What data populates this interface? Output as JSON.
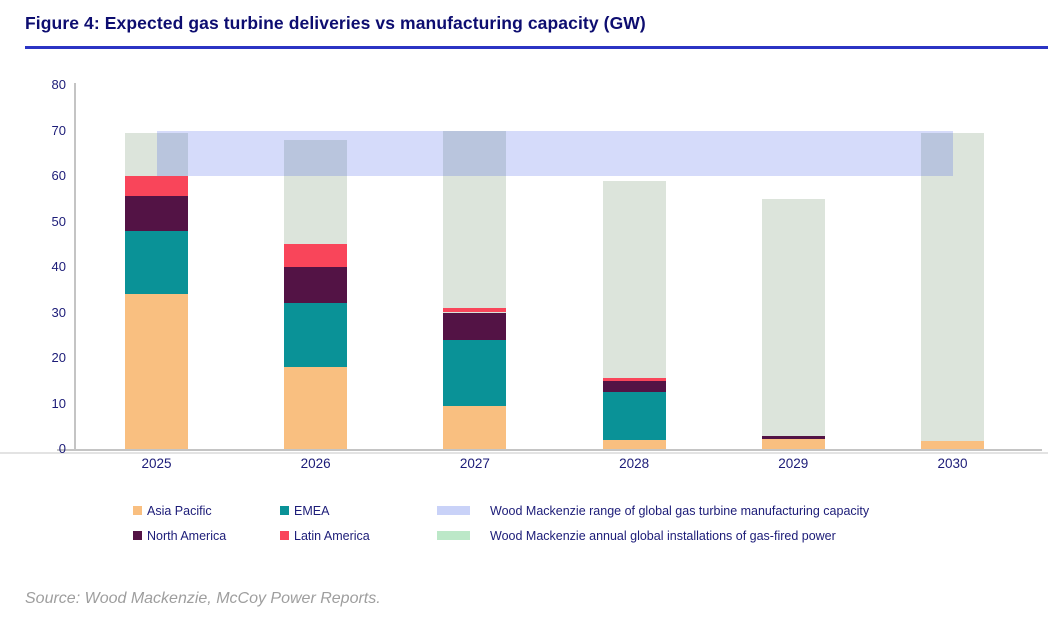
{
  "title": "Figure 4: Expected gas turbine deliveries vs manufacturing capacity (GW)",
  "source": {
    "text": "Source: Wood Mackenzie, McCoy Power Reports."
  },
  "legend": {
    "items": [
      {
        "label": "Asia Pacific",
        "color": "#f9bf80"
      },
      {
        "label": "EMEA",
        "color": "#0a9297"
      },
      {
        "label": "North America",
        "color": "#531345"
      },
      {
        "label": "Latin America",
        "color": "#f9455a"
      }
    ],
    "band_label": "Wood Mackenzie range of global gas turbine manufacturing capacity",
    "band_swatch_color": "#c9d2f8",
    "installations_label": "Wood Mackenzie annual global installations of gas-fired power",
    "installations_swatch_color": "#bce8c8"
  },
  "chart_data": {
    "type": "bar",
    "subtype": "stacked-with-background-band",
    "title": "Figure 4: Expected gas turbine deliveries vs manufacturing capacity (GW)",
    "xlabel": "",
    "ylabel": "GW",
    "ylim": [
      0,
      80
    ],
    "yticks": [
      0,
      10,
      20,
      30,
      40,
      50,
      60,
      70,
      80
    ],
    "grid": false,
    "legend_position": "bottom",
    "categories": [
      "2025",
      "2026",
      "2027",
      "2028",
      "2029",
      "2030"
    ],
    "series": [
      {
        "name": "Asia Pacific",
        "color": "#f9bf80",
        "values": [
          34,
          18,
          9.5,
          2,
          2.2,
          1.8
        ]
      },
      {
        "name": "EMEA",
        "color": "#0a9297",
        "values": [
          14,
          14,
          14.5,
          10.5,
          0,
          0
        ]
      },
      {
        "name": "North America",
        "color": "#531345",
        "values": [
          7.5,
          8,
          6,
          2.5,
          0.6,
          0
        ]
      },
      {
        "name": "Latin America",
        "color": "#f9455a",
        "values": [
          4.5,
          5,
          1,
          0.5,
          0,
          0
        ]
      }
    ],
    "stacked_totals": [
      60,
      45,
      31,
      15.5,
      2.8,
      1.8
    ],
    "background_series": {
      "name": "Wood Mackenzie annual global installations of gas-fired power",
      "color": "#dce4db",
      "values": [
        69.5,
        68,
        70,
        59,
        55,
        69.5
      ]
    },
    "capacity_band": {
      "name": "Wood Mackenzie range of global gas turbine manufacturing capacity",
      "range_gw": [
        60,
        70
      ],
      "overlay_color": "rgba(47,76,232,0.2)",
      "extends": "from 2025 category center to 2030 category center"
    }
  }
}
